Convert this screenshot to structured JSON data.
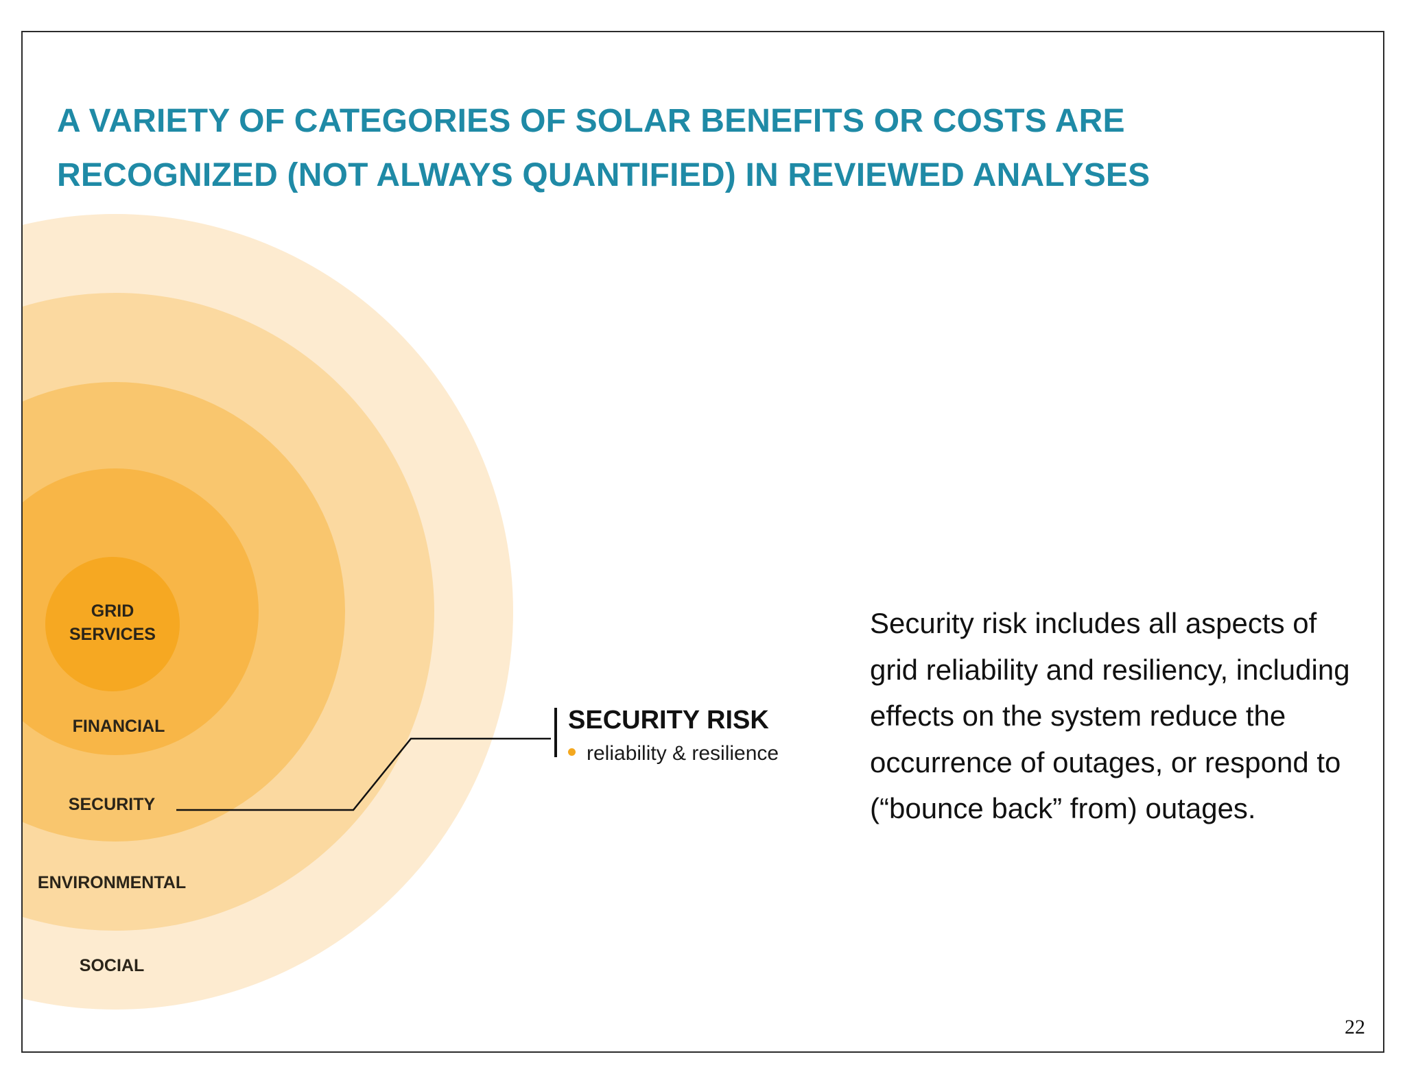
{
  "title": {
    "line1": "A VARIETY OF CATEGORIES OF SOLAR BENEFITS OR COSTS ARE",
    "line2": "RECOGNIZED (NOT ALWAYS QUANTIFIED) IN REVIEWED ANALYSES"
  },
  "rings": [
    {
      "label": "GRID SERVICES",
      "label_line1": "GRID",
      "label_line2": "SERVICES",
      "color": "#f6a822"
    },
    {
      "label": "FINANCIAL",
      "color": "#f8b647"
    },
    {
      "label": "SECURITY",
      "color": "#f9c66e"
    },
    {
      "label": "ENVIRONMENTAL",
      "color": "#fbd9a0"
    },
    {
      "label": "SOCIAL",
      "color": "#fdebd0"
    }
  ],
  "callout": {
    "heading": "SECURITY RISK",
    "item": "reliability & resilience",
    "bullet_color": "#f4a81f"
  },
  "description": "Security risk includes all aspects of grid reliability and resiliency, including effects on the system reduce the occurrence of outages, or respond to (“bounce back” from) outages.",
  "page_number": "22",
  "colors": {
    "title": "#1f8aa6",
    "border": "#2b2b2b"
  }
}
